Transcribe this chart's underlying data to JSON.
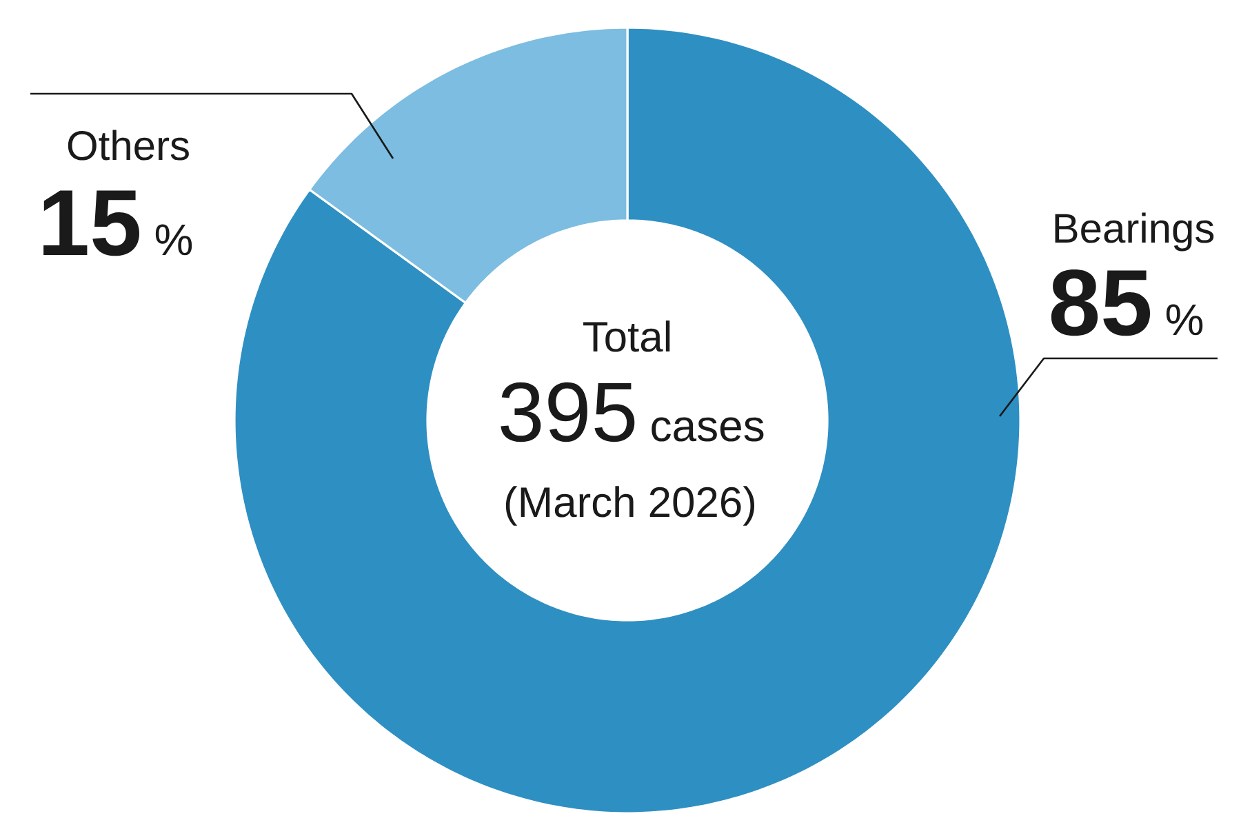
{
  "chart_data": {
    "type": "donut",
    "categories": [
      "Bearings",
      "Others"
    ],
    "values": [
      85,
      15
    ],
    "colors": [
      "#2e8fc2",
      "#7cbde1"
    ],
    "value_labels": [
      "**85** %",
      "**15** %"
    ],
    "annotations": [
      "Total",
      "395",
      "cases",
      "(March 2026)"
    ]
  }
}
